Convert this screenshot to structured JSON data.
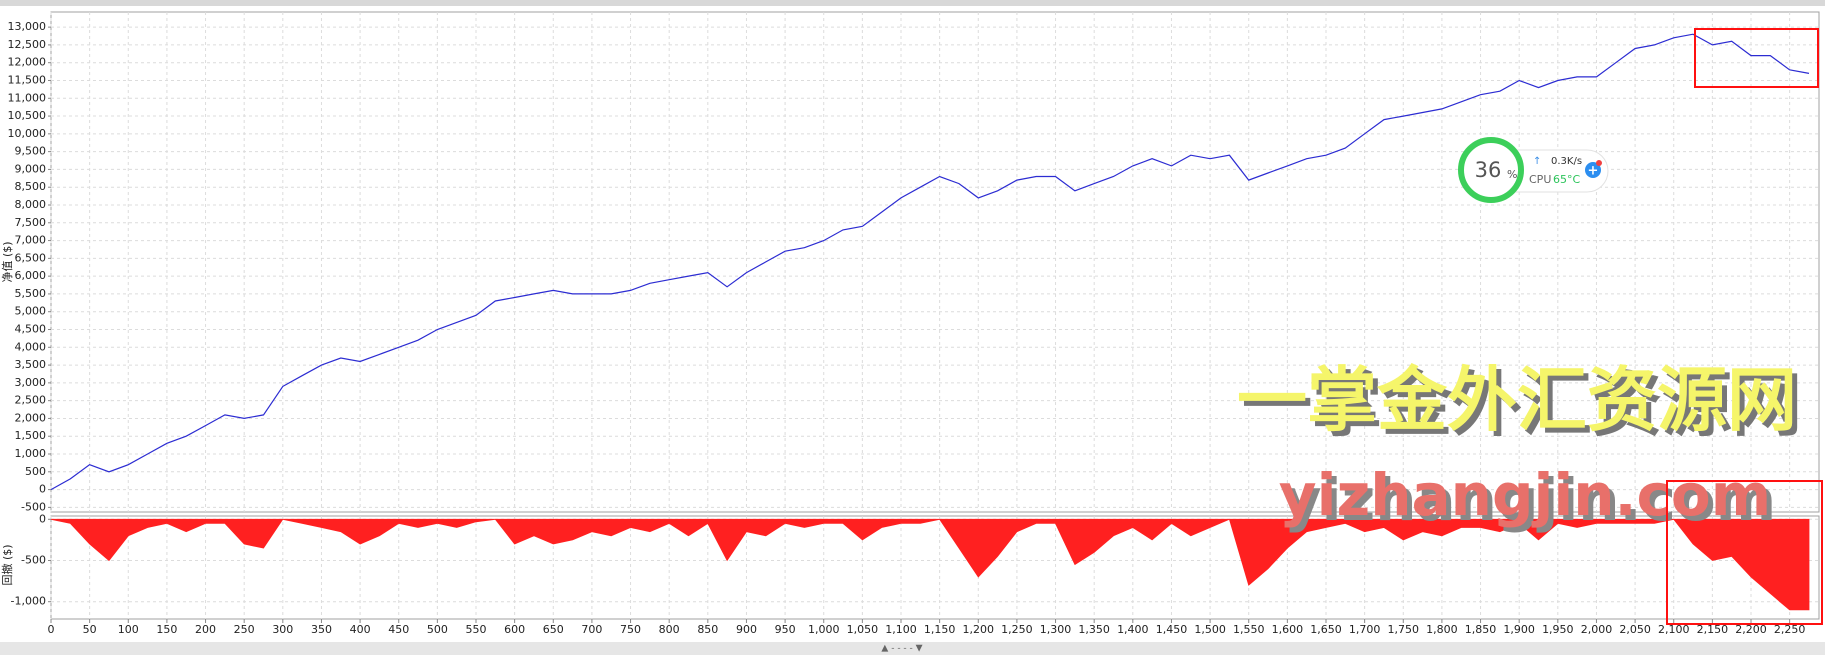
{
  "chart_data": [
    {
      "type": "line",
      "y_label": "净值 ($)",
      "color": "#2c2cd2",
      "grid": true,
      "x": [
        0,
        25,
        50,
        75,
        100,
        125,
        150,
        175,
        200,
        225,
        250,
        275,
        300,
        325,
        350,
        375,
        400,
        425,
        450,
        475,
        500,
        525,
        550,
        575,
        600,
        625,
        650,
        675,
        700,
        725,
        750,
        775,
        800,
        825,
        850,
        875,
        900,
        925,
        950,
        975,
        1000,
        1025,
        1050,
        1075,
        1100,
        1125,
        1150,
        1175,
        1200,
        1225,
        1250,
        1275,
        1300,
        1325,
        1350,
        1375,
        1400,
        1425,
        1450,
        1475,
        1500,
        1525,
        1550,
        1575,
        1600,
        1625,
        1650,
        1675,
        1700,
        1725,
        1750,
        1775,
        1800,
        1825,
        1850,
        1875,
        1900,
        1925,
        1950,
        1975,
        2000,
        2025,
        2050,
        2075,
        2100,
        2125,
        2150,
        2175,
        2200,
        2225,
        2250,
        2275
      ],
      "values": [
        0,
        300,
        700,
        500,
        700,
        1000,
        1300,
        1500,
        1800,
        2100,
        2000,
        2100,
        2900,
        3200,
        3500,
        3700,
        3600,
        3800,
        4000,
        4200,
        4500,
        4700,
        4900,
        5300,
        5400,
        5500,
        5600,
        5500,
        5500,
        5500,
        5600,
        5800,
        5900,
        6000,
        6100,
        5700,
        6100,
        6400,
        6700,
        6800,
        7000,
        7300,
        7400,
        7800,
        8200,
        8500,
        8800,
        8600,
        8200,
        8400,
        8700,
        8800,
        8800,
        8400,
        8600,
        8800,
        9100,
        9300,
        9100,
        9400,
        9300,
        9400,
        8700,
        8900,
        9100,
        9300,
        9400,
        9600,
        10000,
        10400,
        10500,
        10600,
        10700,
        10900,
        11100,
        11200,
        11500,
        11300,
        11500,
        11600,
        11600,
        12000,
        12400,
        12500,
        12700,
        12800,
        12500,
        12600,
        12200,
        12200,
        11800,
        11700
      ],
      "xlim": [
        0,
        2288
      ],
      "ylim": [
        -630,
        13425
      ],
      "yticks": [
        -500,
        0,
        500,
        {
          "value": 1000,
          "label": "1,000"
        },
        {
          "value": 1500,
          "label": "1,500"
        },
        {
          "value": 2000,
          "label": "2,000"
        },
        {
          "value": 2500,
          "label": "2,500"
        },
        {
          "value": 3000,
          "label": "3,000"
        },
        {
          "value": 3500,
          "label": "3,500"
        },
        {
          "value": 4000,
          "label": "4,000"
        },
        {
          "value": 4500,
          "label": "4,500"
        },
        {
          "value": 5000,
          "label": "5,000"
        },
        {
          "value": 5500,
          "label": "5,500"
        },
        {
          "value": 6000,
          "label": "6,000"
        },
        {
          "value": 6500,
          "label": "6,500"
        },
        {
          "value": 7000,
          "label": "7,000"
        },
        {
          "value": 7500,
          "label": "7,500"
        },
        {
          "value": 8000,
          "label": "8,000"
        },
        {
          "value": 8500,
          "label": "8,500"
        },
        {
          "value": 9000,
          "label": "9,000"
        },
        {
          "value": 9500,
          "label": "9,500"
        },
        {
          "value": 10000,
          "label": "10,000"
        },
        {
          "value": 10500,
          "label": "10,500"
        },
        {
          "value": 11000,
          "label": "11,000"
        },
        {
          "value": 11500,
          "label": "11,500"
        },
        {
          "value": 12000,
          "label": "12,000"
        },
        {
          "value": 12500,
          "label": "12,500"
        },
        {
          "value": 13000,
          "label": "13,000"
        }
      ]
    },
    {
      "type": "area",
      "y_label": "回撤 ($)",
      "color": "#ff2020",
      "grid": true,
      "x": [
        0,
        25,
        50,
        75,
        100,
        125,
        150,
        175,
        200,
        225,
        250,
        275,
        300,
        325,
        350,
        375,
        400,
        425,
        450,
        475,
        500,
        525,
        550,
        575,
        600,
        625,
        650,
        675,
        700,
        725,
        750,
        775,
        800,
        825,
        850,
        875,
        900,
        925,
        950,
        975,
        1000,
        1025,
        1050,
        1075,
        1100,
        1125,
        1150,
        1175,
        1200,
        1225,
        1250,
        1275,
        1300,
        1325,
        1350,
        1375,
        1400,
        1425,
        1450,
        1475,
        1500,
        1525,
        1550,
        1575,
        1600,
        1625,
        1650,
        1675,
        1700,
        1725,
        1750,
        1775,
        1800,
        1825,
        1850,
        1875,
        1900,
        1925,
        1950,
        1975,
        2000,
        2025,
        2050,
        2075,
        2100,
        2125,
        2150,
        2175,
        2200,
        2225,
        2250,
        2275
      ],
      "values": [
        0,
        -50,
        -300,
        -500,
        -200,
        -100,
        -50,
        -150,
        -50,
        -50,
        -300,
        -350,
        0,
        -50,
        -100,
        -150,
        -300,
        -200,
        -50,
        -100,
        -50,
        -100,
        -30,
        0,
        -300,
        -200,
        -300,
        -250,
        -150,
        -200,
        -100,
        -150,
        -50,
        -200,
        -50,
        -500,
        -150,
        -200,
        -50,
        -100,
        -50,
        -50,
        -250,
        -100,
        -50,
        -50,
        0,
        -350,
        -700,
        -450,
        -150,
        -50,
        -50,
        -550,
        -400,
        -200,
        -100,
        -250,
        -50,
        -200,
        -100,
        0,
        -800,
        -600,
        -350,
        -150,
        -100,
        -50,
        -150,
        -100,
        -250,
        -150,
        -200,
        -100,
        -100,
        -150,
        -50,
        -250,
        -50,
        -100,
        -50,
        -50,
        -50,
        -50,
        0,
        -300,
        -500,
        -450,
        -700,
        -900,
        -1100,
        -1100
      ],
      "xlim": [
        0,
        2288
      ],
      "ylim": [
        -1210,
        40
      ],
      "yticks": [
        0,
        -500,
        {
          "value": -1000,
          "label": "-1,000"
        }
      ],
      "xticks": [
        0,
        50,
        100,
        150,
        200,
        250,
        300,
        350,
        400,
        450,
        500,
        550,
        600,
        650,
        700,
        750,
        800,
        850,
        900,
        950,
        {
          "value": 1000,
          "label": "1,000"
        },
        {
          "value": 1050,
          "label": "1,050"
        },
        {
          "value": 1100,
          "label": "1,100"
        },
        {
          "value": 1150,
          "label": "1,150"
        },
        {
          "value": 1200,
          "label": "1,200"
        },
        {
          "value": 1250,
          "label": "1,250"
        },
        {
          "value": 1300,
          "label": "1,300"
        },
        {
          "value": 1350,
          "label": "1,350"
        },
        {
          "value": 1400,
          "label": "1,400"
        },
        {
          "value": 1450,
          "label": "1,450"
        },
        {
          "value": 1500,
          "label": "1,500"
        },
        {
          "value": 1550,
          "label": "1,550"
        },
        {
          "value": 1600,
          "label": "1,600"
        },
        {
          "value": 1650,
          "label": "1,650"
        },
        {
          "value": 1700,
          "label": "1,700"
        },
        {
          "value": 1750,
          "label": "1,750"
        },
        {
          "value": 1800,
          "label": "1,800"
        },
        {
          "value": 1850,
          "label": "1,850"
        },
        {
          "value": 1900,
          "label": "1,900"
        },
        {
          "value": 1950,
          "label": "1,950"
        },
        {
          "value": 2000,
          "label": "2,000"
        },
        {
          "value": 2050,
          "label": "2,050"
        },
        {
          "value": 2100,
          "label": "2,100"
        },
        {
          "value": 2150,
          "label": "2,150"
        },
        {
          "value": 2200,
          "label": "2,200"
        },
        {
          "value": 2250,
          "label": "2,250"
        }
      ]
    }
  ],
  "overlay": {
    "cpu_percent": "36",
    "percent_sign": "%",
    "net_speed": "0.3K/s",
    "cpu_label": "CPU",
    "cpu_temp": "65°C",
    "watermark_cn": "一掌金外汇资源网",
    "watermark_url": "yizhangjin.com",
    "scroll_handle": "▲ - - - - ▼"
  }
}
